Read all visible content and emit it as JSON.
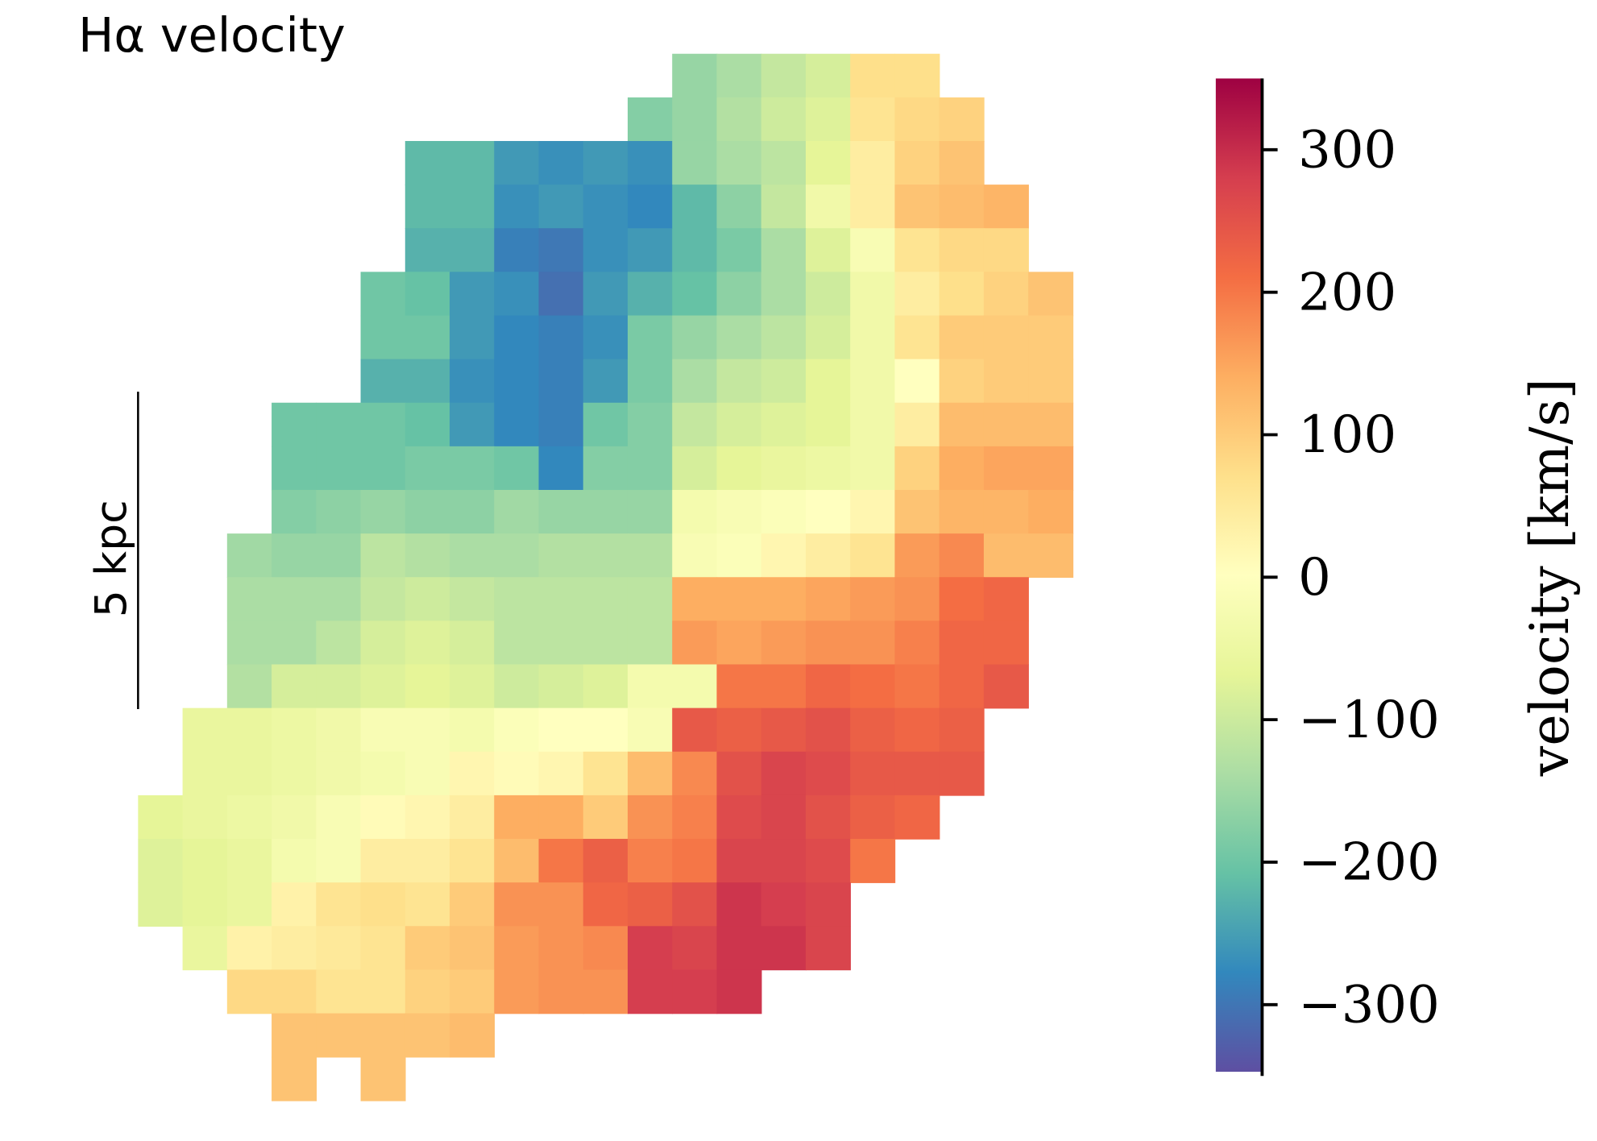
{
  "chart_data": {
    "type": "heatmap",
    "title": "Hα velocity",
    "scale_bar_label": "5 kpc",
    "colorbar_label": "velocity [km/s]",
    "zlim": [
      -350,
      350
    ],
    "zticks": [
      {
        "value": -300,
        "label": "−300"
      },
      {
        "value": -200,
        "label": "−200"
      },
      {
        "value": -100,
        "label": "−100"
      },
      0,
      100,
      200,
      300
    ],
    "colorscale": [
      "#5e4fa2",
      "#3288bd",
      "#66c2a5",
      "#abdda4",
      "#e6f598",
      "#ffffbf",
      "#fee08b",
      "#fdae61",
      "#f46d43",
      "#d53e4f",
      "#9e0142"
    ],
    "z": [
      [
        null,
        null,
        null,
        null,
        null,
        null,
        null,
        null,
        null,
        null,
        null,
        null,
        -160,
        -140,
        -110,
        -90,
        70,
        70,
        null,
        null,
        null
      ],
      [
        null,
        null,
        null,
        null,
        null,
        null,
        null,
        null,
        null,
        null,
        null,
        -180,
        -160,
        -130,
        -100,
        -80,
        60,
        80,
        90,
        null,
        null
      ],
      [
        null,
        null,
        null,
        null,
        null,
        null,
        -220,
        -220,
        -260,
        -270,
        -260,
        -270,
        -160,
        -140,
        -120,
        -70,
        40,
        90,
        110,
        null,
        null
      ],
      [
        null,
        null,
        null,
        null,
        null,
        null,
        -220,
        -220,
        -270,
        -260,
        -270,
        -280,
        -220,
        -170,
        -110,
        -40,
        40,
        110,
        120,
        130,
        null
      ],
      [
        null,
        null,
        null,
        null,
        null,
        null,
        -230,
        -230,
        -290,
        -300,
        -270,
        -260,
        -220,
        -190,
        -140,
        -80,
        -20,
        60,
        80,
        80,
        null
      ],
      [
        null,
        null,
        null,
        null,
        null,
        -200,
        -210,
        -260,
        -270,
        -310,
        -260,
        -230,
        -210,
        -170,
        -140,
        -100,
        -40,
        40,
        70,
        90,
        110
      ],
      [
        null,
        null,
        null,
        null,
        null,
        -200,
        -200,
        -260,
        -280,
        -290,
        -270,
        -190,
        -160,
        -140,
        -120,
        -90,
        -40,
        60,
        100,
        100,
        100
      ],
      [
        null,
        null,
        null,
        null,
        null,
        -230,
        -230,
        -270,
        -280,
        -290,
        -260,
        -190,
        -140,
        -110,
        -100,
        -70,
        -40,
        0,
        90,
        100,
        100
      ],
      [
        null,
        null,
        null,
        -200,
        -200,
        -200,
        -210,
        -260,
        -280,
        -290,
        -200,
        -180,
        -110,
        -90,
        -80,
        -70,
        -40,
        40,
        120,
        120,
        120
      ],
      [
        null,
        null,
        null,
        -200,
        -200,
        -200,
        -190,
        -190,
        -200,
        -280,
        -180,
        -180,
        -90,
        -70,
        -60,
        -50,
        -40,
        90,
        140,
        150,
        150
      ],
      [
        null,
        null,
        null,
        -180,
        -170,
        -160,
        -170,
        -170,
        -150,
        -160,
        -160,
        -160,
        -30,
        -20,
        -10,
        0,
        20,
        110,
        130,
        130,
        140
      ],
      [
        null,
        null,
        -150,
        -160,
        -160,
        -120,
        -130,
        -140,
        -140,
        -130,
        -130,
        -130,
        -20,
        -10,
        20,
        40,
        60,
        160,
        180,
        120,
        120
      ],
      [
        null,
        null,
        -140,
        -140,
        -140,
        -110,
        -100,
        -110,
        -120,
        -120,
        -120,
        -120,
        140,
        140,
        140,
        150,
        160,
        170,
        210,
        220,
        null
      ],
      [
        null,
        null,
        -140,
        -140,
        -120,
        -90,
        -80,
        -90,
        -120,
        -120,
        -120,
        -120,
        160,
        150,
        160,
        170,
        170,
        190,
        220,
        220,
        null
      ],
      [
        null,
        null,
        -130,
        -90,
        -90,
        -80,
        -70,
        -80,
        -100,
        -90,
        -80,
        -30,
        -30,
        200,
        200,
        220,
        210,
        200,
        220,
        240,
        null
      ],
      [
        null,
        -60,
        -60,
        -50,
        -40,
        -20,
        -20,
        -30,
        -10,
        0,
        0,
        -20,
        240,
        230,
        240,
        250,
        230,
        220,
        230,
        null,
        null
      ],
      [
        null,
        -60,
        -60,
        -50,
        -40,
        -30,
        -20,
        20,
        10,
        20,
        60,
        120,
        180,
        250,
        270,
        260,
        240,
        240,
        240,
        null,
        null
      ],
      [
        -70,
        -60,
        -50,
        -40,
        -20,
        10,
        20,
        40,
        140,
        140,
        100,
        170,
        190,
        260,
        270,
        250,
        230,
        220,
        null,
        null,
        null
      ],
      [
        -80,
        -70,
        -60,
        -30,
        -20,
        40,
        40,
        60,
        120,
        200,
        230,
        190,
        200,
        270,
        270,
        260,
        200,
        null,
        null,
        null,
        null
      ],
      [
        -80,
        -70,
        -60,
        30,
        60,
        70,
        60,
        100,
        170,
        170,
        220,
        230,
        250,
        290,
        280,
        270,
        null,
        null,
        null,
        null,
        null
      ],
      [
        null,
        -60,
        30,
        40,
        50,
        60,
        100,
        110,
        160,
        170,
        180,
        280,
        270,
        290,
        290,
        270,
        null,
        null,
        null,
        null,
        null
      ],
      [
        null,
        null,
        80,
        80,
        60,
        60,
        90,
        100,
        160,
        170,
        170,
        280,
        280,
        290,
        null,
        null,
        null,
        null,
        null,
        null,
        null
      ],
      [
        null,
        null,
        null,
        110,
        110,
        110,
        110,
        120,
        null,
        null,
        null,
        null,
        null,
        null,
        null,
        null,
        null,
        null,
        null,
        null,
        null
      ],
      [
        null,
        null,
        null,
        110,
        null,
        110,
        null,
        null,
        null,
        null,
        null,
        null,
        null,
        null,
        null,
        null,
        null,
        null,
        null,
        null,
        null
      ]
    ]
  }
}
